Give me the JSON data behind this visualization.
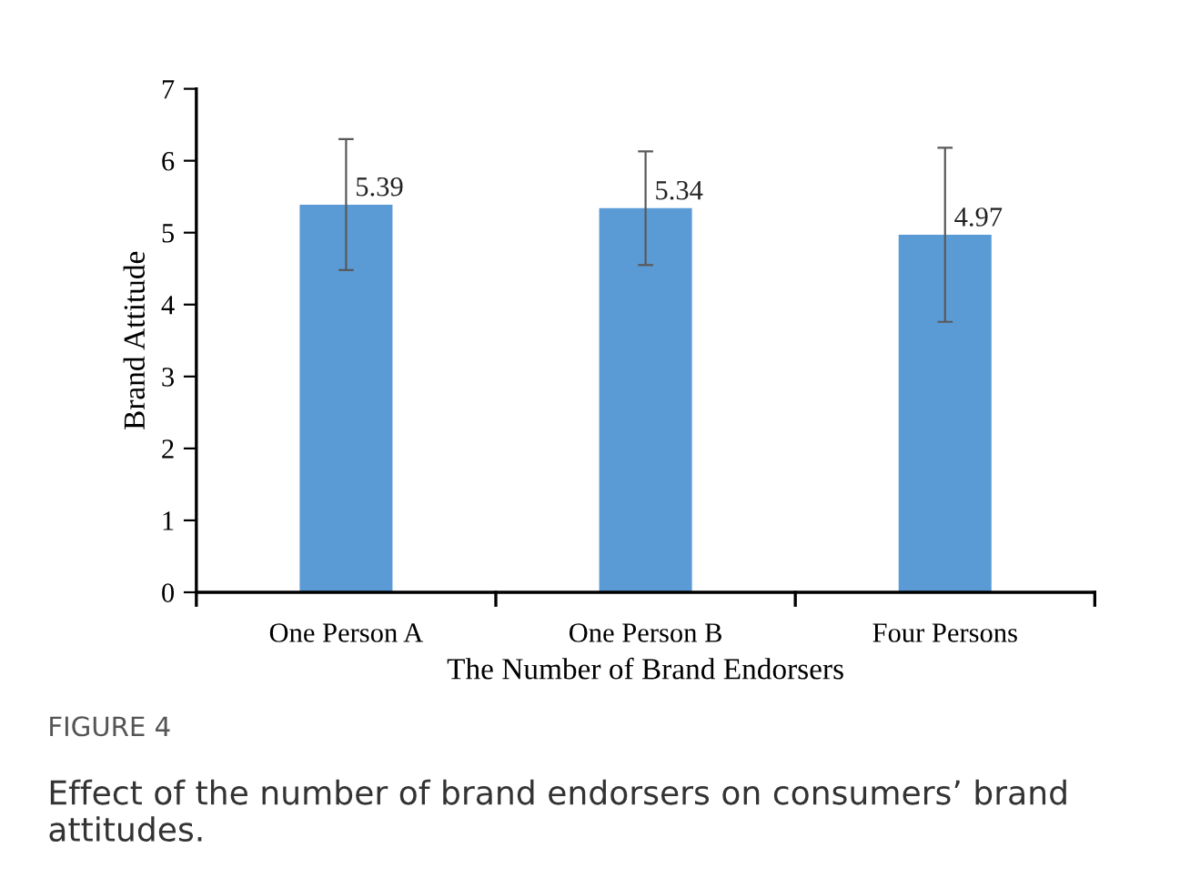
{
  "chart_data": {
    "type": "bar",
    "xlabel": "The Number of Brand Endorsers",
    "ylabel": "Brand Attitude",
    "categories": [
      "One Person A",
      "One Person B",
      "Four Persons"
    ],
    "values": [
      5.39,
      5.34,
      4.97
    ],
    "errors": [
      [
        4.48,
        6.3
      ],
      [
        4.55,
        6.13
      ],
      [
        3.76,
        6.18
      ]
    ],
    "color": "#5b9bd5",
    "data_labels": true,
    "ylim": [
      0,
      7
    ],
    "yticks": [
      0,
      1,
      2,
      3,
      4,
      5,
      6,
      7
    ],
    "grid": false,
    "legend": false,
    "annotations": [
      "FIGURE 4",
      "Effect of the number of brand endorsers on consumers’ brand attitudes."
    ]
  }
}
